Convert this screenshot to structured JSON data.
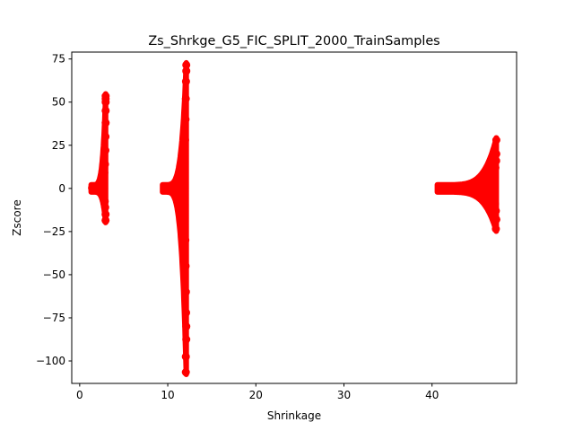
{
  "chart_data": {
    "type": "scatter",
    "title": "Zs_Shrkge_G5_FIC_SPLIT_2000_TrainSamples",
    "xlabel": "Shrinkage",
    "ylabel": "Zscore",
    "xlim": [
      -0.9,
      49.6
    ],
    "ylim": [
      -113,
      79
    ],
    "xticks": [
      0,
      10,
      20,
      30,
      40
    ],
    "xtick_labels": [
      "0",
      "10",
      "20",
      "30",
      "40"
    ],
    "yticks": [
      75,
      50,
      25,
      0,
      -25,
      -50,
      -75,
      -100
    ],
    "ytick_labels": [
      "75",
      "50",
      "25",
      "0",
      "−25",
      "−50",
      "−75",
      "−100"
    ],
    "grid": false,
    "marker_color": "#ff0000",
    "clusters": [
      {
        "x_start": 1.3,
        "x_end": 2.95,
        "tip_ymax": 53.5,
        "tip_ymin": -18.5,
        "points": [
          [
            1.4,
            0.3
          ],
          [
            1.6,
            0.0
          ],
          [
            1.8,
            -0.6
          ],
          [
            2.0,
            -1.2
          ],
          [
            2.2,
            0.8
          ],
          [
            2.35,
            1.6
          ],
          [
            2.5,
            -2.3
          ],
          [
            2.6,
            3.0
          ],
          [
            2.7,
            -4.0
          ],
          [
            2.75,
            5.5
          ],
          [
            2.8,
            9.0
          ],
          [
            2.85,
            -7.5
          ],
          [
            2.88,
            14.0
          ],
          [
            2.9,
            -11.0
          ],
          [
            2.92,
            22.0
          ],
          [
            2.93,
            30.0
          ],
          [
            2.94,
            -15.0
          ],
          [
            2.95,
            38.0
          ],
          [
            2.95,
            45.0
          ],
          [
            2.95,
            50.0
          ],
          [
            2.95,
            53.5
          ],
          [
            2.95,
            52.0
          ],
          [
            2.94,
            -18.5
          ]
        ]
      },
      {
        "x_start": 9.4,
        "x_end": 12.1,
        "tip_ymax": 71.5,
        "tip_ymin": -106.5,
        "points": [
          [
            9.6,
            -0.1
          ],
          [
            10.0,
            -0.3
          ],
          [
            10.4,
            0.6
          ],
          [
            10.7,
            -0.9
          ],
          [
            11.0,
            1.5
          ],
          [
            11.2,
            -2.0
          ],
          [
            11.4,
            3.0
          ],
          [
            11.55,
            -4.2
          ],
          [
            11.7,
            7.0
          ],
          [
            11.8,
            -9.0
          ],
          [
            11.88,
            15.0
          ],
          [
            11.93,
            -18.0
          ],
          [
            11.97,
            28.0
          ],
          [
            12.0,
            -30.0
          ],
          [
            12.02,
            40.0
          ],
          [
            12.03,
            -45.0
          ],
          [
            12.05,
            52.0
          ],
          [
            12.06,
            -60.0
          ],
          [
            12.07,
            62.0
          ],
          [
            12.08,
            -72.0
          ],
          [
            12.1,
            68.0
          ],
          [
            12.1,
            71.5
          ],
          [
            12.1,
            -80.0
          ],
          [
            12.1,
            -87.5
          ],
          [
            12.05,
            -97.5
          ],
          [
            12.05,
            -106.5
          ]
        ]
      },
      {
        "x_start": 40.6,
        "x_end": 47.3,
        "tip_ymax": 28.0,
        "tip_ymin": -23.5,
        "points": [
          [
            40.8,
            0.2
          ],
          [
            41.5,
            0.1
          ],
          [
            42.3,
            -0.3
          ],
          [
            43.0,
            0.5
          ],
          [
            43.8,
            -0.8
          ],
          [
            44.5,
            1.0
          ],
          [
            45.2,
            -1.4
          ],
          [
            45.8,
            2.0
          ],
          [
            46.2,
            -2.8
          ],
          [
            46.6,
            3.5
          ],
          [
            46.9,
            -5.0
          ],
          [
            47.05,
            7.0
          ],
          [
            47.15,
            -9.0
          ],
          [
            47.2,
            12.0
          ],
          [
            47.25,
            -13.0
          ],
          [
            47.28,
            16.0
          ],
          [
            47.3,
            -18.0
          ],
          [
            47.3,
            20.0
          ],
          [
            47.3,
            28.0
          ],
          [
            47.25,
            -23.5
          ]
        ]
      }
    ]
  }
}
